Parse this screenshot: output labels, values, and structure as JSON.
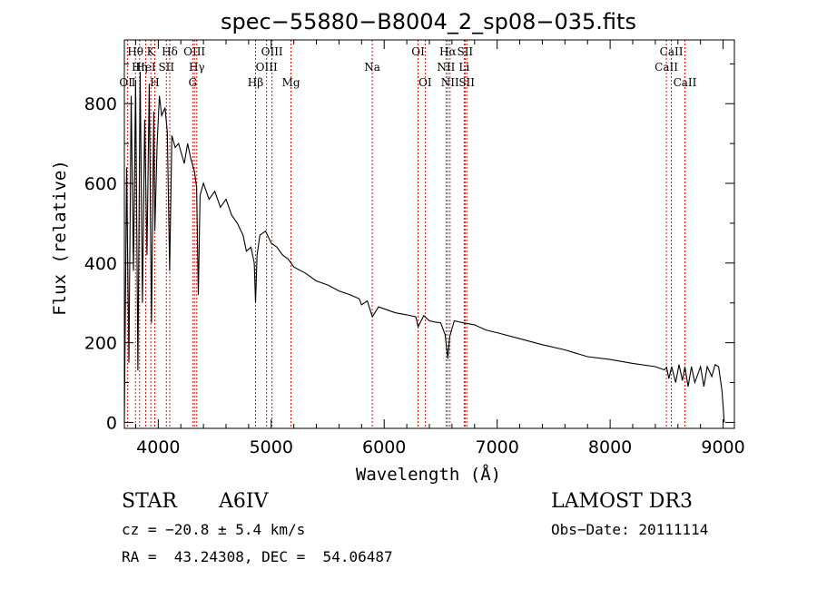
{
  "chart_data": {
    "type": "line",
    "title": "spec−55880−B8004_2_sp08−035.fits",
    "xlabel": "Wavelength (Å)",
    "ylabel": "Flux (relative)",
    "xlim": [
      3700,
      9100
    ],
    "ylim": [
      -15,
      960
    ],
    "xticks": [
      4000,
      5000,
      6000,
      7000,
      8000,
      9000
    ],
    "yticks": [
      0,
      200,
      400,
      600,
      800
    ],
    "series": [
      {
        "name": "flux",
        "x": [
          3700,
          3720,
          3740,
          3760,
          3780,
          3800,
          3820,
          3840,
          3860,
          3880,
          3900,
          3920,
          3940,
          3960,
          3970,
          3990,
          4010,
          4030,
          4060,
          4080,
          4101,
          4120,
          4150,
          4180,
          4200,
          4230,
          4260,
          4290,
          4320,
          4340,
          4355,
          4370,
          4400,
          4450,
          4500,
          4550,
          4600,
          4650,
          4700,
          4750,
          4780,
          4820,
          4850,
          4861,
          4875,
          4900,
          4950,
          5000,
          5050,
          5100,
          5150,
          5200,
          5300,
          5400,
          5500,
          5600,
          5700,
          5780,
          5800,
          5850,
          5895,
          5950,
          6000,
          6100,
          6200,
          6280,
          6300,
          6350,
          6400,
          6450,
          6500,
          6540,
          6563,
          6580,
          6620,
          6700,
          6800,
          6900,
          7000,
          7200,
          7400,
          7600,
          7800,
          8000,
          8200,
          8400,
          8480,
          8500,
          8520,
          8545,
          8580,
          8610,
          8640,
          8662,
          8690,
          8720,
          8750,
          8800,
          8830,
          8860,
          8900,
          8930,
          8960,
          8990,
          9000,
          9010
        ],
        "values": [
          0,
          640,
          150,
          820,
          380,
          860,
          130,
          880,
          300,
          760,
          420,
          850,
          250,
          780,
          480,
          700,
          820,
          770,
          790,
          730,
          380,
          720,
          690,
          700,
          680,
          650,
          700,
          660,
          630,
          590,
          320,
          570,
          600,
          560,
          580,
          540,
          560,
          520,
          500,
          470,
          430,
          440,
          400,
          300,
          420,
          470,
          480,
          450,
          440,
          420,
          410,
          390,
          375,
          355,
          345,
          330,
          320,
          310,
          295,
          305,
          265,
          290,
          285,
          275,
          270,
          265,
          240,
          268,
          255,
          252,
          250,
          220,
          160,
          215,
          255,
          250,
          245,
          232,
          225,
          210,
          195,
          182,
          165,
          158,
          148,
          140,
          132,
          138,
          110,
          140,
          100,
          145,
          105,
          140,
          90,
          140,
          100,
          140,
          90,
          140,
          115,
          145,
          140,
          80,
          40,
          0
        ]
      }
    ],
    "line_markers": [
      {
        "label": "OⅡ",
        "x": 3727,
        "row": 3
      },
      {
        "label": "Hθ",
        "x": 3798,
        "row": 1
      },
      {
        "label": "Hη",
        "x": 3835,
        "row": 2
      },
      {
        "label": "HeI",
        "x": 3889,
        "row": 2
      },
      {
        "label": "K",
        "x": 3934,
        "row": 1
      },
      {
        "label": "H",
        "x": 3969,
        "row": 3
      },
      {
        "label": "SII",
        "x": 4072,
        "row": 2
      },
      {
        "label": "Hδ",
        "x": 4102,
        "row": 1
      },
      {
        "label": "OIII",
        "x": 4320,
        "row": 1
      },
      {
        "label": "Hγ",
        "x": 4341,
        "row": 2
      },
      {
        "label": "G",
        "x": 4305,
        "row": 3
      },
      {
        "label": "Hβ",
        "x": 4861,
        "row": 3
      },
      {
        "label": "OIII",
        "x": 4959,
        "row": 2
      },
      {
        "label": "OIII",
        "x": 5007,
        "row": 1
      },
      {
        "label": "Mg",
        "x": 5175,
        "row": 3
      },
      {
        "label": "Na",
        "x": 5894,
        "row": 2
      },
      {
        "label": "OI",
        "x": 6300,
        "row": 1
      },
      {
        "label": "OI",
        "x": 6363,
        "row": 3
      },
      {
        "label": "NII",
        "x": 6548,
        "row": 2
      },
      {
        "label": "Hα",
        "x": 6563,
        "row": 1
      },
      {
        "label": "NII",
        "x": 6583,
        "row": 3
      },
      {
        "label": "Li",
        "x": 6708,
        "row": 2
      },
      {
        "label": "SII",
        "x": 6716,
        "row": 1
      },
      {
        "label": "SII",
        "x": 6731,
        "row": 3
      },
      {
        "label": "CaII",
        "x": 8498,
        "row": 2
      },
      {
        "label": "CaII",
        "x": 8542,
        "row": 1
      },
      {
        "label": "CaII",
        "x": 8662,
        "row": 3
      }
    ],
    "line_marker_color": "#cc0000",
    "trace_color": "#000000"
  },
  "info": {
    "object_class": "STAR",
    "subclass": "A6IV",
    "survey": "LAMOST DR3",
    "cz": "cz = −20.8 ± 5.4 km/s",
    "obs_date": "Obs−Date: 20111114",
    "coords": "RA =  43.24308, DEC =  54.06487"
  }
}
